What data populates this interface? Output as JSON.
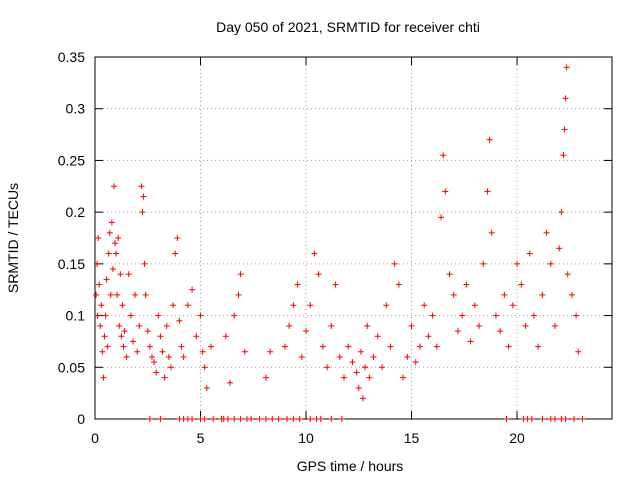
{
  "chart_data": {
    "type": "scatter",
    "title": "Day 050 of 2021, SRMTID for receiver chti",
    "xlabel": "GPS time / hours",
    "ylabel": "SRMTID / TECUs",
    "xlim": [
      0,
      24.5
    ],
    "ylim": [
      0,
      0.35
    ],
    "xticks": [
      0,
      5,
      10,
      15,
      20
    ],
    "xtick_labels": [
      "0",
      "5",
      "10",
      "15",
      "20"
    ],
    "yticks": [
      0,
      0.05,
      0.1,
      0.15,
      0.2,
      0.25,
      0.3,
      0.35
    ],
    "ytick_labels": [
      "0",
      "0.05",
      "0.1",
      "0.15",
      "0.2",
      "0.25",
      "0.3",
      "0.35"
    ],
    "grid": true,
    "marker": "plus",
    "series_color": "#ff0000",
    "points": [
      [
        0.05,
        0.12
      ],
      [
        0.1,
        0.15
      ],
      [
        0.12,
        0.1
      ],
      [
        0.15,
        0.175
      ],
      [
        0.2,
        0.13
      ],
      [
        0.25,
        0.09
      ],
      [
        0.3,
        0.11
      ],
      [
        0.35,
        0.065
      ],
      [
        0.4,
        0.04
      ],
      [
        0.45,
        0.08
      ],
      [
        0.5,
        0.1
      ],
      [
        0.55,
        0.135
      ],
      [
        0.6,
        0.07
      ],
      [
        0.65,
        0.16
      ],
      [
        0.7,
        0.18
      ],
      [
        0.75,
        0.12
      ],
      [
        0.8,
        0.19
      ],
      [
        0.85,
        0.145
      ],
      [
        0.9,
        0.225
      ],
      [
        0.95,
        0.17
      ],
      [
        1.0,
        0.16
      ],
      [
        1.05,
        0.12
      ],
      [
        1.1,
        0.175
      ],
      [
        1.15,
        0.09
      ],
      [
        1.2,
        0.14
      ],
      [
        1.25,
        0.08
      ],
      [
        1.3,
        0.11
      ],
      [
        1.35,
        0.07
      ],
      [
        1.4,
        0.085
      ],
      [
        1.5,
        0.06
      ],
      [
        1.6,
        0.14
      ],
      [
        1.7,
        0.1
      ],
      [
        1.8,
        0.075
      ],
      [
        1.9,
        0.12
      ],
      [
        2.0,
        0.065
      ],
      [
        2.1,
        0.09
      ],
      [
        2.2,
        0.225
      ],
      [
        2.25,
        0.2
      ],
      [
        2.3,
        0.215
      ],
      [
        2.35,
        0.15
      ],
      [
        2.4,
        0.12
      ],
      [
        2.5,
        0.085
      ],
      [
        2.6,
        0.07
      ],
      [
        2.7,
        0.06
      ],
      [
        2.8,
        0.055
      ],
      [
        2.9,
        0.045
      ],
      [
        3.0,
        0.1
      ],
      [
        3.1,
        0.08
      ],
      [
        3.2,
        0.065
      ],
      [
        3.3,
        0.04
      ],
      [
        3.4,
        0.09
      ],
      [
        3.5,
        0.06
      ],
      [
        3.6,
        0.05
      ],
      [
        3.7,
        0.11
      ],
      [
        3.8,
        0.16
      ],
      [
        3.9,
        0.175
      ],
      [
        4.0,
        0.095
      ],
      [
        4.1,
        0.07
      ],
      [
        4.2,
        0.06
      ],
      [
        4.4,
        0.11
      ],
      [
        4.6,
        0.125
      ],
      [
        4.8,
        0.08
      ],
      [
        5.0,
        0.1
      ],
      [
        5.1,
        0.065
      ],
      [
        5.2,
        0.05
      ],
      [
        5.3,
        0.03
      ],
      [
        5.5,
        0.07
      ],
      [
        6.2,
        0.08
      ],
      [
        6.4,
        0.035
      ],
      [
        6.6,
        0.1
      ],
      [
        6.8,
        0.12
      ],
      [
        6.9,
        0.14
      ],
      [
        7.1,
        0.065
      ],
      [
        8.1,
        0.04
      ],
      [
        8.3,
        0.065
      ],
      [
        9.0,
        0.07
      ],
      [
        9.2,
        0.09
      ],
      [
        9.4,
        0.11
      ],
      [
        9.6,
        0.13
      ],
      [
        9.8,
        0.06
      ],
      [
        10.0,
        0.085
      ],
      [
        10.2,
        0.11
      ],
      [
        10.4,
        0.16
      ],
      [
        10.6,
        0.14
      ],
      [
        10.8,
        0.07
      ],
      [
        11.0,
        0.05
      ],
      [
        11.2,
        0.09
      ],
      [
        11.4,
        0.13
      ],
      [
        11.6,
        0.06
      ],
      [
        11.8,
        0.04
      ],
      [
        12.0,
        0.07
      ],
      [
        12.2,
        0.055
      ],
      [
        12.4,
        0.045
      ],
      [
        12.5,
        0.03
      ],
      [
        12.6,
        0.065
      ],
      [
        12.7,
        0.02
      ],
      [
        12.8,
        0.05
      ],
      [
        12.9,
        0.09
      ],
      [
        13.0,
        0.04
      ],
      [
        13.2,
        0.06
      ],
      [
        13.4,
        0.08
      ],
      [
        13.6,
        0.05
      ],
      [
        13.8,
        0.11
      ],
      [
        14.0,
        0.07
      ],
      [
        14.2,
        0.15
      ],
      [
        14.4,
        0.13
      ],
      [
        14.6,
        0.04
      ],
      [
        14.8,
        0.06
      ],
      [
        15.0,
        0.09
      ],
      [
        15.2,
        0.055
      ],
      [
        15.4,
        0.07
      ],
      [
        15.6,
        0.11
      ],
      [
        15.8,
        0.08
      ],
      [
        16.0,
        0.1
      ],
      [
        16.2,
        0.07
      ],
      [
        16.4,
        0.195
      ],
      [
        16.5,
        0.255
      ],
      [
        16.6,
        0.22
      ],
      [
        16.8,
        0.14
      ],
      [
        17.0,
        0.12
      ],
      [
        17.2,
        0.085
      ],
      [
        17.4,
        0.1
      ],
      [
        17.6,
        0.13
      ],
      [
        17.8,
        0.075
      ],
      [
        18.0,
        0.11
      ],
      [
        18.2,
        0.09
      ],
      [
        18.4,
        0.15
      ],
      [
        18.6,
        0.22
      ],
      [
        18.7,
        0.27
      ],
      [
        18.8,
        0.18
      ],
      [
        19.0,
        0.1
      ],
      [
        19.2,
        0.085
      ],
      [
        19.4,
        0.12
      ],
      [
        19.6,
        0.07
      ],
      [
        19.8,
        0.11
      ],
      [
        20.0,
        0.15
      ],
      [
        20.2,
        0.13
      ],
      [
        20.4,
        0.09
      ],
      [
        20.6,
        0.16
      ],
      [
        20.8,
        0.1
      ],
      [
        21.0,
        0.07
      ],
      [
        21.2,
        0.12
      ],
      [
        21.4,
        0.18
      ],
      [
        21.6,
        0.15
      ],
      [
        21.8,
        0.09
      ],
      [
        22.0,
        0.165
      ],
      [
        22.1,
        0.2
      ],
      [
        22.2,
        0.255
      ],
      [
        22.25,
        0.28
      ],
      [
        22.3,
        0.31
      ],
      [
        22.35,
        0.34
      ],
      [
        22.4,
        0.14
      ],
      [
        22.6,
        0.12
      ],
      [
        22.8,
        0.1
      ],
      [
        22.9,
        0.065
      ]
    ],
    "zero_points_x": [
      2.6,
      3.1,
      4.0,
      4.2,
      4.4,
      4.6,
      5.0,
      5.2,
      5.6,
      6.0,
      6.1,
      6.3,
      6.6,
      6.9,
      7.2,
      7.4,
      7.8,
      8.1,
      8.4,
      8.7,
      9.1,
      9.4,
      9.7,
      10.2,
      10.5,
      10.7,
      11.2,
      11.7,
      19.5,
      20.3,
      20.5,
      20.7,
      21.2,
      21.6,
      21.8,
      22.1,
      22.3,
      22.7,
      23.1
    ]
  }
}
